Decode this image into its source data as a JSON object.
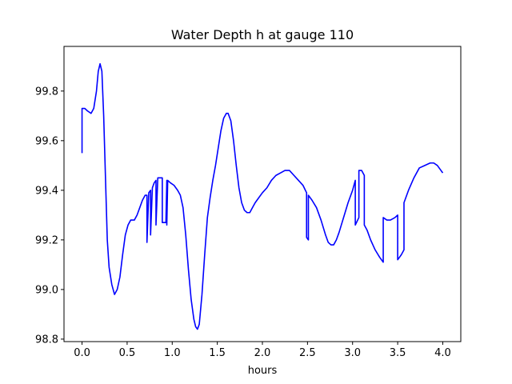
{
  "chart_data": {
    "type": "line",
    "title": "Water Depth h at gauge 110",
    "xlabel": "hours",
    "ylabel": "",
    "xlim": [
      -0.2,
      4.2
    ],
    "ylim": [
      98.79,
      99.98
    ],
    "xticks": [
      0.0,
      0.5,
      1.0,
      1.5,
      2.0,
      2.5,
      3.0,
      3.5,
      4.0
    ],
    "xtick_labels": [
      "0.0",
      "0.5",
      "1.0",
      "1.5",
      "2.0",
      "2.5",
      "3.0",
      "3.5",
      "4.0"
    ],
    "yticks": [
      98.8,
      99.0,
      99.2,
      99.4,
      99.6,
      99.8
    ],
    "ytick_labels": [
      "98.8",
      "99.0",
      "99.2",
      "99.4",
      "99.6",
      "99.8"
    ],
    "grid": false,
    "series": [
      {
        "name": "",
        "color": "#0000ff",
        "points": [
          [
            0.0,
            99.55
          ],
          [
            0.0,
            99.73
          ],
          [
            0.03,
            99.73
          ],
          [
            0.06,
            99.72
          ],
          [
            0.1,
            99.71
          ],
          [
            0.13,
            99.73
          ],
          [
            0.16,
            99.8
          ],
          [
            0.18,
            99.88
          ],
          [
            0.2,
            99.91
          ],
          [
            0.22,
            99.88
          ],
          [
            0.24,
            99.7
          ],
          [
            0.26,
            99.45
          ],
          [
            0.28,
            99.2
          ],
          [
            0.3,
            99.09
          ],
          [
            0.33,
            99.02
          ],
          [
            0.36,
            98.98
          ],
          [
            0.39,
            99.0
          ],
          [
            0.42,
            99.05
          ],
          [
            0.45,
            99.14
          ],
          [
            0.48,
            99.22
          ],
          [
            0.51,
            99.26
          ],
          [
            0.54,
            99.28
          ],
          [
            0.58,
            99.28
          ],
          [
            0.61,
            99.3
          ],
          [
            0.64,
            99.33
          ],
          [
            0.67,
            99.36
          ],
          [
            0.7,
            99.38
          ],
          [
            0.72,
            99.38
          ],
          [
            0.72,
            99.19
          ],
          [
            0.74,
            99.39
          ],
          [
            0.76,
            99.4
          ],
          [
            0.76,
            99.22
          ],
          [
            0.78,
            99.41
          ],
          [
            0.8,
            99.43
          ],
          [
            0.82,
            99.44
          ],
          [
            0.82,
            99.26
          ],
          [
            0.84,
            99.45
          ],
          [
            0.89,
            99.45
          ],
          [
            0.89,
            99.27
          ],
          [
            0.93,
            99.27
          ],
          [
            0.94,
            99.44
          ],
          [
            0.94,
            99.26
          ],
          [
            0.95,
            99.44
          ],
          [
            0.98,
            99.43
          ],
          [
            1.02,
            99.42
          ],
          [
            1.06,
            99.4
          ],
          [
            1.09,
            99.38
          ],
          [
            1.12,
            99.33
          ],
          [
            1.15,
            99.22
          ],
          [
            1.18,
            99.08
          ],
          [
            1.21,
            98.96
          ],
          [
            1.24,
            98.88
          ],
          [
            1.26,
            98.85
          ],
          [
            1.28,
            98.84
          ],
          [
            1.3,
            98.86
          ],
          [
            1.33,
            98.98
          ],
          [
            1.36,
            99.14
          ],
          [
            1.39,
            99.29
          ],
          [
            1.42,
            99.37
          ],
          [
            1.45,
            99.44
          ],
          [
            1.48,
            99.5
          ],
          [
            1.51,
            99.57
          ],
          [
            1.54,
            99.64
          ],
          [
            1.57,
            99.69
          ],
          [
            1.6,
            99.71
          ],
          [
            1.62,
            99.71
          ],
          [
            1.65,
            99.68
          ],
          [
            1.68,
            99.6
          ],
          [
            1.71,
            99.5
          ],
          [
            1.74,
            99.41
          ],
          [
            1.77,
            99.35
          ],
          [
            1.8,
            99.32
          ],
          [
            1.83,
            99.31
          ],
          [
            1.86,
            99.31
          ],
          [
            1.89,
            99.33
          ],
          [
            1.92,
            99.35
          ],
          [
            1.96,
            99.37
          ],
          [
            2.0,
            99.39
          ],
          [
            2.05,
            99.41
          ],
          [
            2.1,
            99.44
          ],
          [
            2.15,
            99.46
          ],
          [
            2.2,
            99.47
          ],
          [
            2.25,
            99.48
          ],
          [
            2.3,
            99.48
          ],
          [
            2.35,
            99.46
          ],
          [
            2.4,
            99.44
          ],
          [
            2.45,
            99.42
          ],
          [
            2.49,
            99.39
          ],
          [
            2.49,
            99.21
          ],
          [
            2.51,
            99.2
          ],
          [
            2.51,
            99.38
          ],
          [
            2.55,
            99.36
          ],
          [
            2.6,
            99.33
          ],
          [
            2.65,
            99.28
          ],
          [
            2.7,
            99.22
          ],
          [
            2.73,
            99.19
          ],
          [
            2.76,
            99.18
          ],
          [
            2.79,
            99.18
          ],
          [
            2.82,
            99.2
          ],
          [
            2.85,
            99.23
          ],
          [
            2.9,
            99.29
          ],
          [
            2.95,
            99.35
          ],
          [
            3.0,
            99.4
          ],
          [
            3.03,
            99.44
          ],
          [
            3.03,
            99.26
          ],
          [
            3.07,
            99.29
          ],
          [
            3.07,
            99.48
          ],
          [
            3.1,
            99.48
          ],
          [
            3.13,
            99.46
          ],
          [
            3.13,
            99.26
          ],
          [
            3.16,
            99.24
          ],
          [
            3.2,
            99.2
          ],
          [
            3.25,
            99.16
          ],
          [
            3.3,
            99.13
          ],
          [
            3.34,
            99.11
          ],
          [
            3.34,
            99.29
          ],
          [
            3.38,
            99.28
          ],
          [
            3.42,
            99.28
          ],
          [
            3.47,
            99.29
          ],
          [
            3.5,
            99.3
          ],
          [
            3.5,
            99.12
          ],
          [
            3.54,
            99.14
          ],
          [
            3.57,
            99.16
          ],
          [
            3.57,
            99.35
          ],
          [
            3.62,
            99.4
          ],
          [
            3.68,
            99.45
          ],
          [
            3.74,
            99.49
          ],
          [
            3.8,
            99.5
          ],
          [
            3.86,
            99.51
          ],
          [
            3.9,
            99.51
          ],
          [
            3.94,
            99.5
          ],
          [
            3.98,
            99.48
          ],
          [
            4.0,
            99.47
          ]
        ]
      }
    ]
  }
}
